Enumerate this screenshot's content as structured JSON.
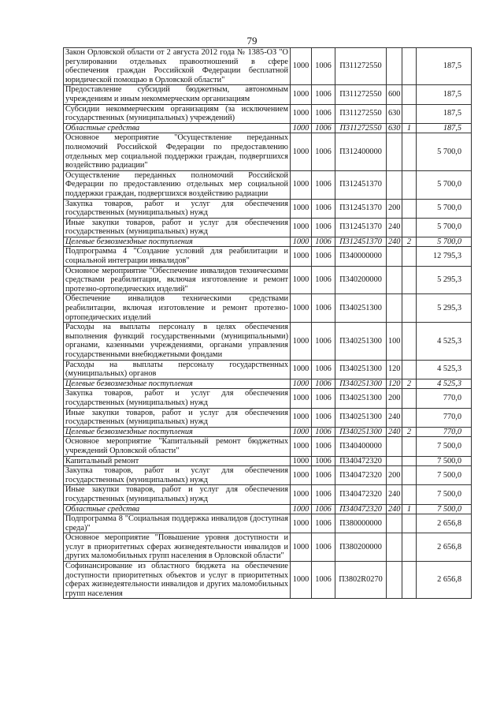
{
  "page_number": "79",
  "rows": [
    {
      "desc": "Закон Орловской области от 2 августа 2012 года № 1385-ОЗ \"О регулировании отдельных правоотношений в сфере обеспечения граждан Российской Федерации бесплатной юридической помощью в Орловской области\"",
      "rz": "1000",
      "pr": "1006",
      "csr": "П311272550",
      "vr": "",
      "src": "",
      "amount": "187,5",
      "italic": false
    },
    {
      "desc": "Предоставление субсидий бюджетным, автономным учреждениям и иным некоммерческим организациям",
      "rz": "1000",
      "pr": "1006",
      "csr": "П311272550",
      "vr": "600",
      "src": "",
      "amount": "187,5",
      "italic": false
    },
    {
      "desc": "Субсидии некоммерческим организациям (за исключением государственных (муниципальных) учреждений)",
      "rz": "1000",
      "pr": "1006",
      "csr": "П311272550",
      "vr": "630",
      "src": "",
      "amount": "187,5",
      "italic": false
    },
    {
      "desc": "Областные средства",
      "rz": "1000",
      "pr": "1006",
      "csr": "П311272550",
      "vr": "630",
      "src": "1",
      "amount": "187,5",
      "italic": true
    },
    {
      "desc": "Основное мероприятие \"Осуществление переданных полномочий Российской Федерации по предоставлению отдельных мер социальной поддержки граждан, подвергшихся воздействию радиации\"",
      "rz": "1000",
      "pr": "1006",
      "csr": "П312400000",
      "vr": "",
      "src": "",
      "amount": "5 700,0",
      "italic": false
    },
    {
      "desc": "Осуществление переданных полномочий Российской Федерации по предоставлению отдельных мер социальной поддержки граждан, подвергшихся воздействию радиации",
      "rz": "1000",
      "pr": "1006",
      "csr": "П312451370",
      "vr": "",
      "src": "",
      "amount": "5 700,0",
      "italic": false
    },
    {
      "desc": "Закупка товаров, работ и услуг для обеспечения государственных (муниципальных) нужд",
      "rz": "1000",
      "pr": "1006",
      "csr": "П312451370",
      "vr": "200",
      "src": "",
      "amount": "5 700,0",
      "italic": false
    },
    {
      "desc": "Иные закупки товаров, работ и услуг для обеспечения государственных (муниципальных) нужд",
      "rz": "1000",
      "pr": "1006",
      "csr": "П312451370",
      "vr": "240",
      "src": "",
      "amount": "5 700,0",
      "italic": false
    },
    {
      "desc": "Целевые безвозмездные поступления",
      "rz": "1000",
      "pr": "1006",
      "csr": "П312451370",
      "vr": "240",
      "src": "2",
      "amount": "5 700,0",
      "italic": true
    },
    {
      "desc": "Подпрограмма 4 \"Создание условий для реабилитации и социальной интеграции инвалидов\"",
      "rz": "1000",
      "pr": "1006",
      "csr": "П340000000",
      "vr": "",
      "src": "",
      "amount": "12 795,3",
      "italic": false
    },
    {
      "desc": "Основное мероприятие \"Обеспечение инвалидов техническими средствами реабилитации, включая изготовление и ремонт протезно-ортопедических изделий\"",
      "rz": "1000",
      "pr": "1006",
      "csr": "П340200000",
      "vr": "",
      "src": "",
      "amount": "5 295,3",
      "italic": false
    },
    {
      "desc": "Обеспечение инвалидов техническими средствами реабилитации, включая изготовление и ремонт протезно-ортопедических изделий",
      "rz": "1000",
      "pr": "1006",
      "csr": "П340251300",
      "vr": "",
      "src": "",
      "amount": "5 295,3",
      "italic": false
    },
    {
      "desc": "Расходы на выплаты персоналу в целях обеспечения выполнения функций государственными (муниципальными) органами, казенными учреждениями, органами управления государственными внебюджетными фондами",
      "rz": "1000",
      "pr": "1006",
      "csr": "П340251300",
      "vr": "100",
      "src": "",
      "amount": "4 525,3",
      "italic": false
    },
    {
      "desc": "Расходы на выплаты персоналу государственных (муниципальных) органов",
      "rz": "1000",
      "pr": "1006",
      "csr": "П340251300",
      "vr": "120",
      "src": "",
      "amount": "4 525,3",
      "italic": false
    },
    {
      "desc": "Целевые безвозмездные поступления",
      "rz": "1000",
      "pr": "1006",
      "csr": "П340251300",
      "vr": "120",
      "src": "2",
      "amount": "4 525,3",
      "italic": true
    },
    {
      "desc": "Закупка товаров, работ и услуг для обеспечения государственных (муниципальных) нужд",
      "rz": "1000",
      "pr": "1006",
      "csr": "П340251300",
      "vr": "200",
      "src": "",
      "amount": "770,0",
      "italic": false
    },
    {
      "desc": "Иные закупки товаров, работ и услуг для обеспечения государственных (муниципальных) нужд",
      "rz": "1000",
      "pr": "1006",
      "csr": "П340251300",
      "vr": "240",
      "src": "",
      "amount": "770,0",
      "italic": false
    },
    {
      "desc": "Целевые безвозмездные поступления",
      "rz": "1000",
      "pr": "1006",
      "csr": "П340251300",
      "vr": "240",
      "src": "2",
      "amount": "770,0",
      "italic": true
    },
    {
      "desc": "Основное мероприятие \"Капитальный ремонт бюджетных учреждений Орловской области\"",
      "rz": "1000",
      "pr": "1006",
      "csr": "П340400000",
      "vr": "",
      "src": "",
      "amount": "7 500,0",
      "italic": false
    },
    {
      "desc": "Капитальный ремонт",
      "rz": "1000",
      "pr": "1006",
      "csr": "П340472320",
      "vr": "",
      "src": "",
      "amount": "7 500,0",
      "italic": false
    },
    {
      "desc": "Закупка товаров, работ и услуг для обеспечения государственных (муниципальных) нужд",
      "rz": "1000",
      "pr": "1006",
      "csr": "П340472320",
      "vr": "200",
      "src": "",
      "amount": "7 500,0",
      "italic": false
    },
    {
      "desc": "Иные закупки товаров, работ и услуг для обеспечения государственных (муниципальных) нужд",
      "rz": "1000",
      "pr": "1006",
      "csr": "П340472320",
      "vr": "240",
      "src": "",
      "amount": "7 500,0",
      "italic": false
    },
    {
      "desc": "Областные средства",
      "rz": "1000",
      "pr": "1006",
      "csr": "П340472320",
      "vr": "240",
      "src": "1",
      "amount": "7 500,0",
      "italic": true
    },
    {
      "desc": "Подпрограмма 8 \"Социальная поддержка инвалидов (доступная среда)\"",
      "rz": "1000",
      "pr": "1006",
      "csr": "П380000000",
      "vr": "",
      "src": "",
      "amount": "2 656,8",
      "italic": false
    },
    {
      "desc": "Основное мероприятие \"Повышение уровня доступности и услуг в приоритетных сферах жизнедеятельности инвалидов и других маломобильных групп населения в Орловской области\"",
      "rz": "1000",
      "pr": "1006",
      "csr": "П380200000",
      "vr": "",
      "src": "",
      "amount": "2 656,8",
      "italic": false
    },
    {
      "desc": "Софинансирование из областного бюджета на обеспечение доступности приоритетных объектов и услуг в приоритетных сферах жизнедеятельности инвалидов и других маломобильных групп населения",
      "rz": "1000",
      "pr": "1006",
      "csr": "П3802R0270",
      "vr": "",
      "src": "",
      "amount": "2 656,8",
      "italic": false
    }
  ]
}
